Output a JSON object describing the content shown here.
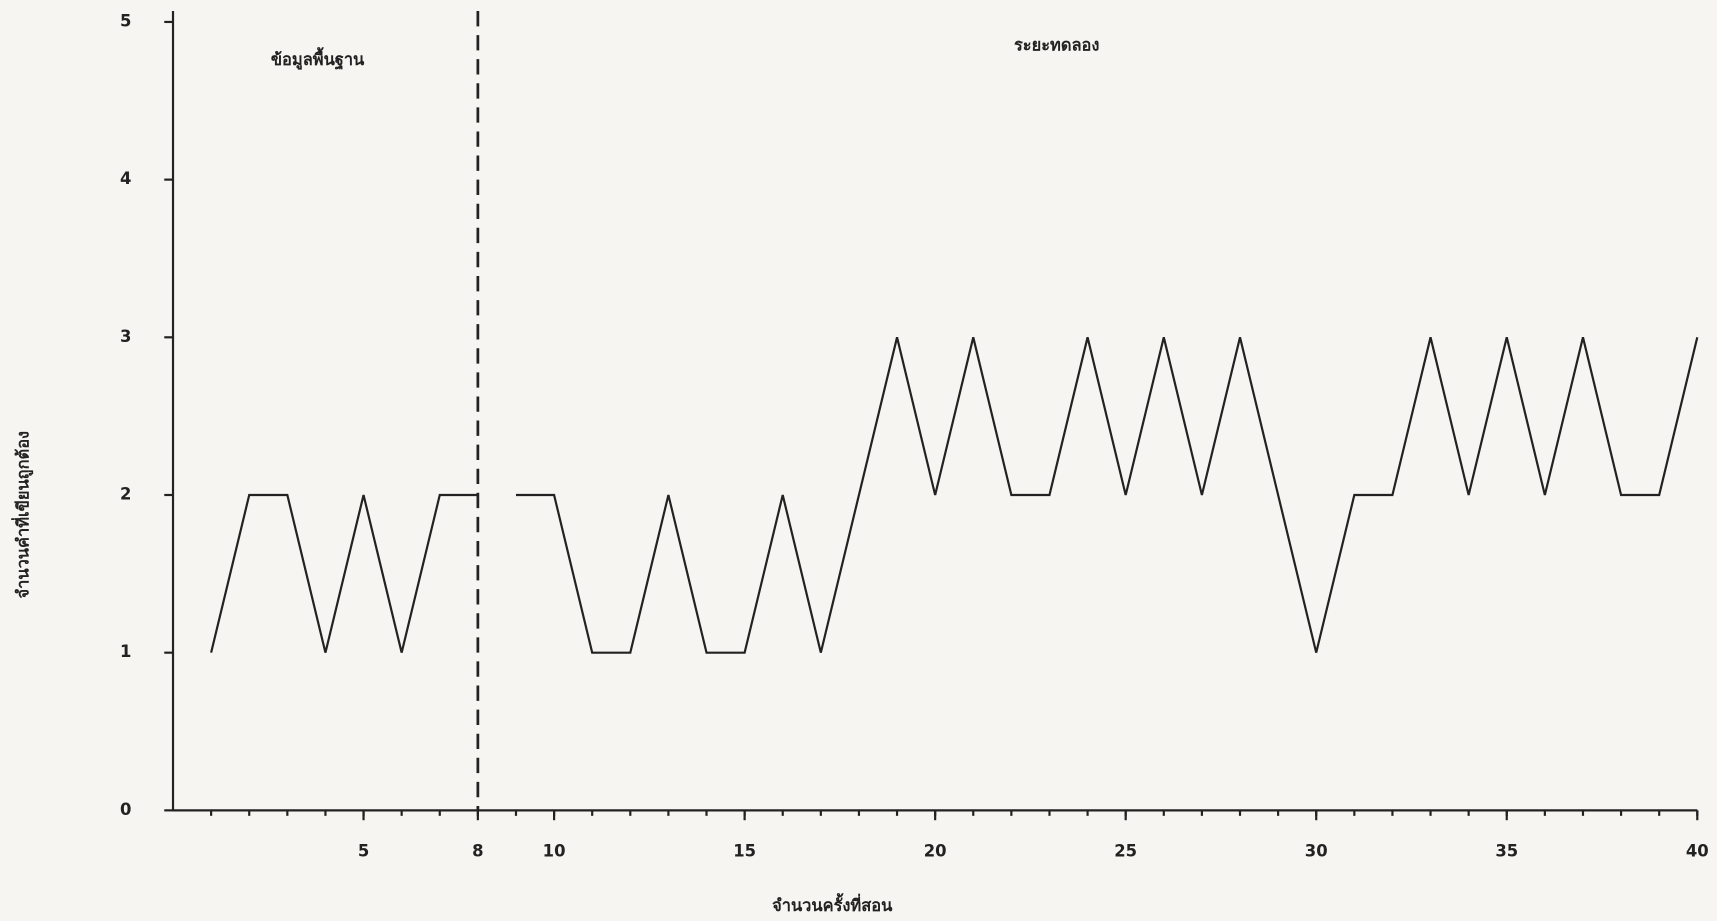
{
  "chart_data": {
    "type": "line",
    "x_label": "จำนวนครั้งที่สอน",
    "y_label": "จำนวนคำที่เขียนถูกต้อง",
    "xlim": [
      0,
      40
    ],
    "ylim": [
      0,
      5
    ],
    "xticks": [
      5,
      8,
      10,
      15,
      20,
      25,
      30,
      35,
      40
    ],
    "xminor": [
      1,
      2,
      3,
      4,
      5,
      6,
      7,
      8,
      9,
      10,
      11,
      12,
      13,
      14,
      15,
      16,
      17,
      18,
      19,
      20,
      21,
      22,
      23,
      24,
      25,
      26,
      27,
      28,
      29,
      30,
      31,
      32,
      33,
      34,
      35,
      36,
      37,
      38,
      39,
      40
    ],
    "yticks": [
      0,
      1,
      2,
      3,
      4,
      5
    ],
    "phase_line": 8,
    "color": "#222222",
    "phases": [
      {
        "label": "ข้อมูลพื้นฐาน",
        "x": [
          1,
          2,
          3,
          4,
          5,
          6,
          7,
          8
        ],
        "values": [
          1,
          2,
          2,
          1,
          2,
          1,
          2,
          2
        ]
      },
      {
        "label": "ระยะทดลอง",
        "x": [
          9,
          10,
          11,
          12,
          13,
          14,
          15,
          16,
          17,
          18,
          19,
          20,
          21,
          22,
          23,
          24,
          25,
          26,
          27,
          28,
          29,
          30,
          31,
          32,
          33,
          34,
          35,
          36,
          37,
          38,
          39,
          40
        ],
        "values": [
          2,
          2,
          1,
          1,
          2,
          1,
          1,
          2,
          1,
          2,
          3,
          2,
          3,
          2,
          2,
          3,
          2,
          3,
          2,
          3,
          2,
          1,
          2,
          2,
          3,
          2,
          3,
          2,
          3,
          2,
          2,
          3
        ]
      }
    ]
  }
}
